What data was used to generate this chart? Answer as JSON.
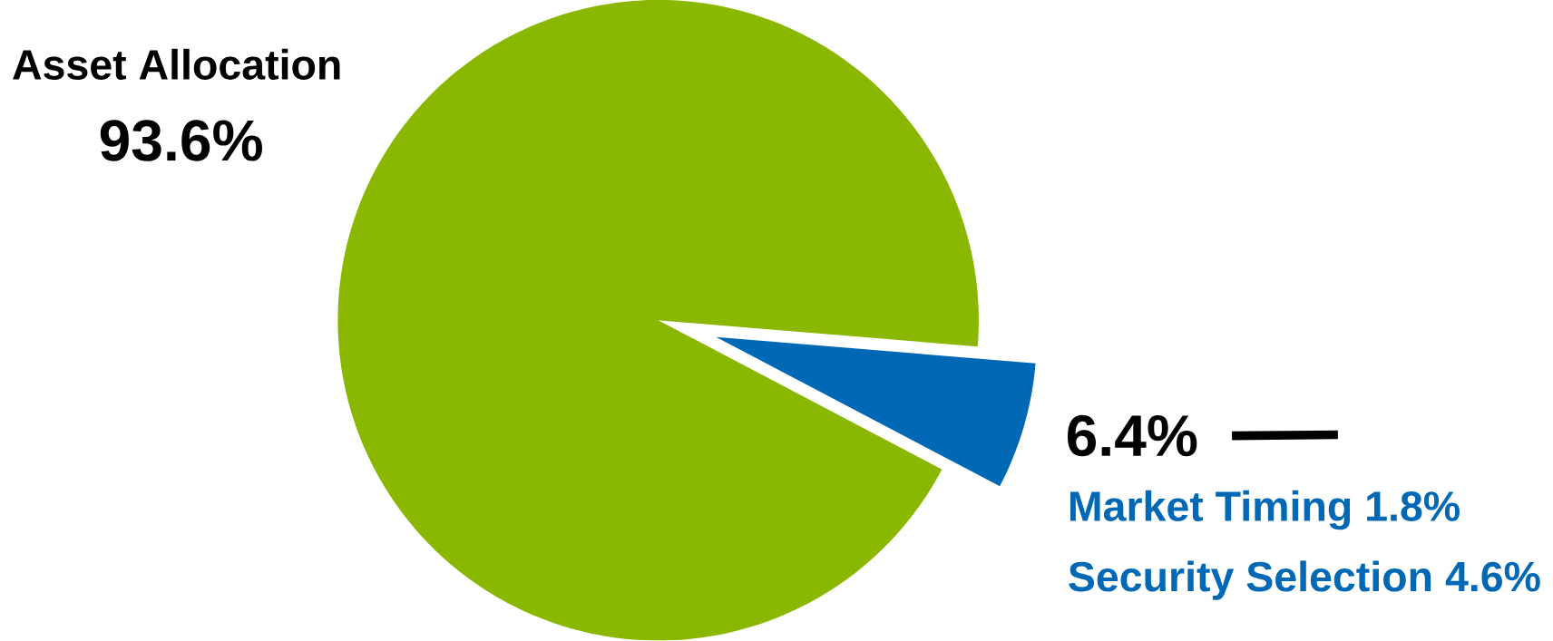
{
  "chart_data": {
    "type": "pie",
    "categories": [
      "Asset Allocation",
      null
    ],
    "values": [
      93.6,
      6.4
    ],
    "colors": [
      "#8ab800",
      "#0068b4"
    ],
    "value_labels": [
      "93.6%",
      "6.4%"
    ],
    "annotations": [
      "Market Timing 1.8%",
      "Security Selection 4.6%"
    ]
  }
}
